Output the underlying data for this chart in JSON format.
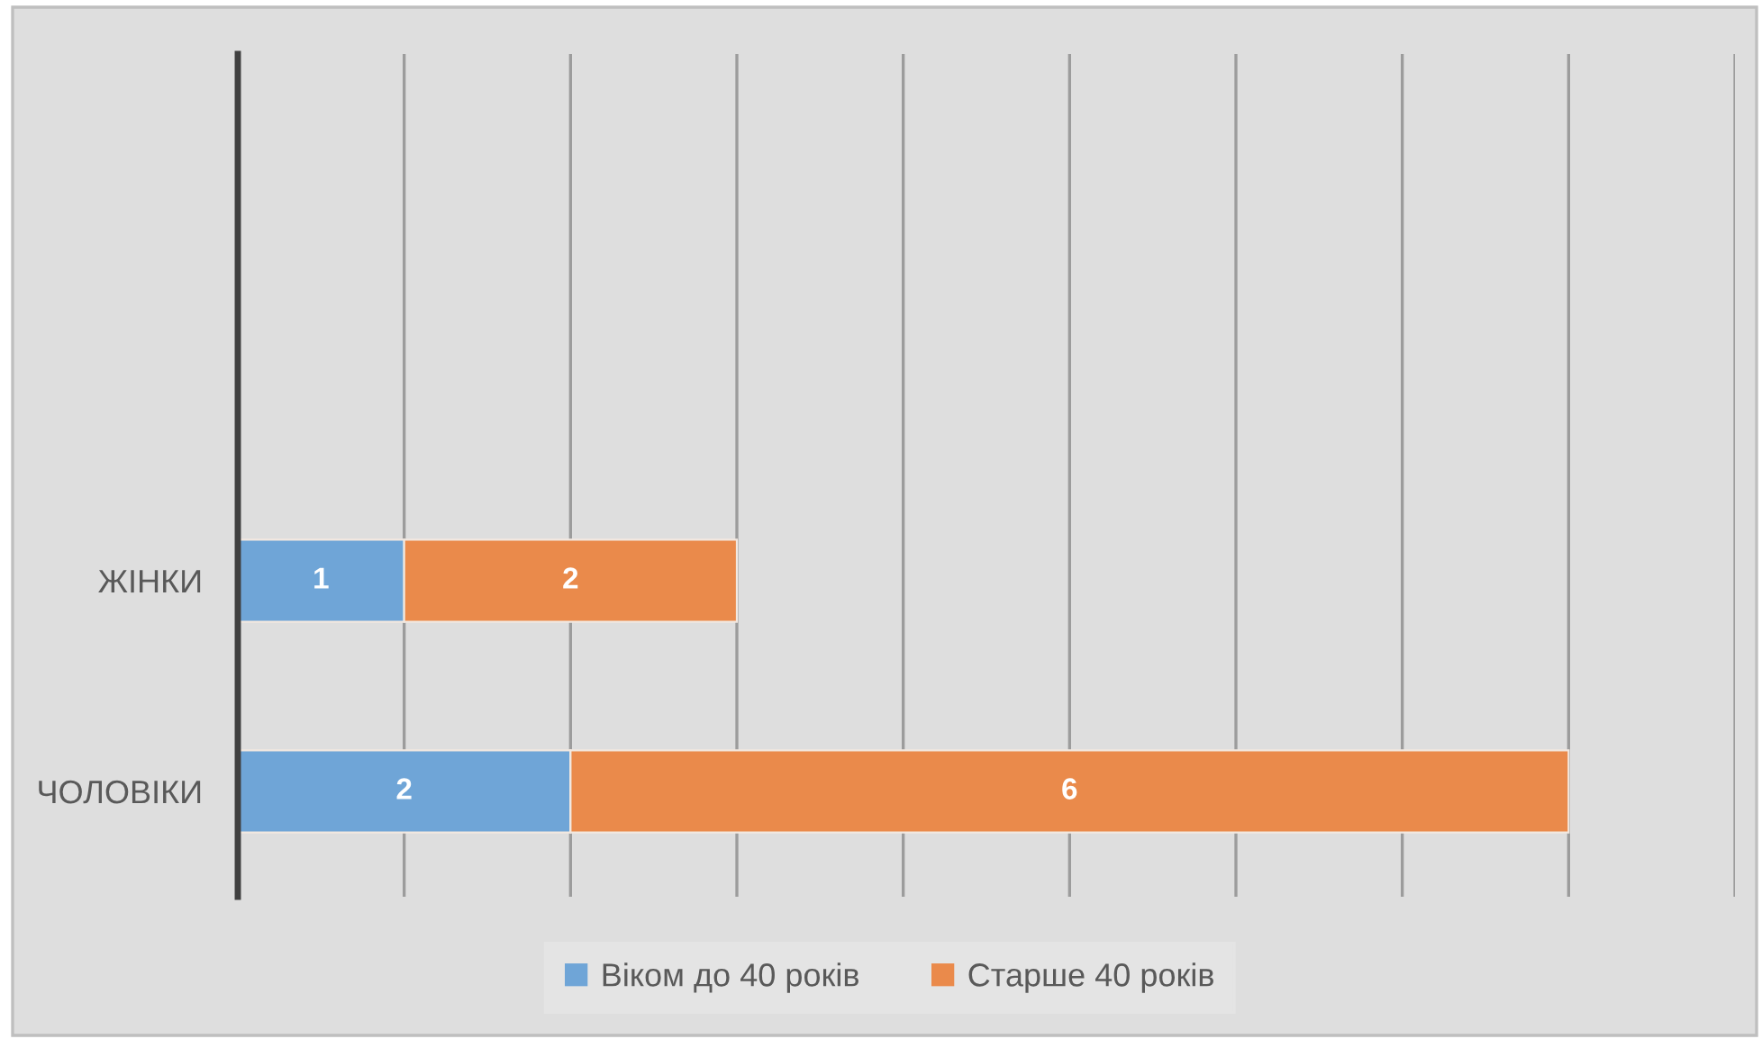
{
  "chart_data": {
    "type": "bar",
    "orientation": "horizontal",
    "stacked": true,
    "categories": [
      null,
      null,
      "ЖІНКИ",
      "ЧОЛОВІКИ"
    ],
    "series": [
      {
        "name": "Віком до 40 років",
        "color": "#6fa5d7",
        "values": [
          null,
          null,
          1,
          2
        ]
      },
      {
        "name": "Старше 40 років",
        "color": "#ea8a4b",
        "values": [
          null,
          null,
          2,
          6
        ]
      }
    ],
    "xlim": [
      0,
      9
    ],
    "xticks": [
      {
        "value": 0,
        "label": null
      },
      {
        "value": 1,
        "label": null
      },
      {
        "value": 2,
        "label": null
      },
      {
        "value": 3,
        "label": null
      },
      {
        "value": 4,
        "label": null
      },
      {
        "value": 5,
        "label": null
      },
      {
        "value": 6,
        "label": null
      },
      {
        "value": 7,
        "label": null
      },
      {
        "value": 8,
        "label": null
      },
      {
        "value": 9,
        "label": null
      }
    ],
    "tick_labels": "y",
    "grid": "x",
    "legend": "bottom",
    "data_labels": true
  }
}
